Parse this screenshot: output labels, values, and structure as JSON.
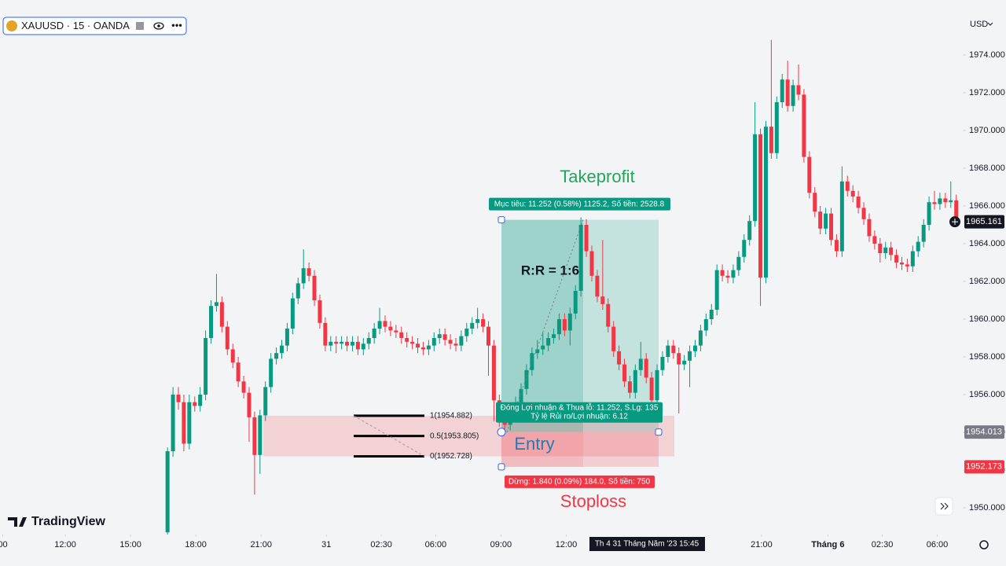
{
  "header": {
    "symbol": "XAUUSD · 15 · OANDA",
    "currency": "USD"
  },
  "brand": "TradingView",
  "chart_data": {
    "type": "candlestick",
    "colors": {
      "up": "#089981",
      "down": "#f23645"
    },
    "xlim": [
      -30.8,
      146.2
    ],
    "ylim": [
      1948.583,
      1976.917
    ],
    "grid": false,
    "yticks": [
      {
        "value": 1950,
        "label": "1950.000"
      },
      {
        "value": 1952,
        "label": "1952.000"
      },
      {
        "value": 1954,
        "label": "1954.000"
      },
      {
        "value": 1956,
        "label": "1956.000"
      },
      {
        "value": 1958,
        "label": "1958.000"
      },
      {
        "value": 1960,
        "label": "1960.000"
      },
      {
        "value": 1962,
        "label": "1962.000"
      },
      {
        "value": 1964,
        "label": "1964.000"
      },
      {
        "value": 1966,
        "label": "1966.000"
      },
      {
        "value": 1968,
        "label": "1968.000"
      },
      {
        "value": 1970,
        "label": "1970.000"
      },
      {
        "value": 1972,
        "label": "1972.000"
      },
      {
        "value": 1974,
        "label": "1974.000"
      }
    ],
    "xticks": [
      {
        "value": -30.3,
        "label": "00"
      },
      {
        "value": -18.8,
        "label": "12:00"
      },
      {
        "value": -6.8,
        "label": "15:00"
      },
      {
        "value": 5.2,
        "label": "18:00"
      },
      {
        "value": 17.2,
        "label": "21:00"
      },
      {
        "value": 29.2,
        "label": "31"
      },
      {
        "value": 39.3,
        "label": "02:30"
      },
      {
        "value": 49.3,
        "label": "06:00"
      },
      {
        "value": 61.3,
        "label": "09:00"
      },
      {
        "value": 73.3,
        "label": "12:00"
      },
      {
        "value": 109.2,
        "label": "21:00"
      },
      {
        "value": 121.4,
        "label": "Tháng 6"
      },
      {
        "value": 131.4,
        "label": "02:30"
      },
      {
        "value": 141.5,
        "label": "06:00"
      }
    ],
    "crosshair_time": "Th 4 31 Tháng Năm '23   15:45",
    "last_price": {
      "value": 1965.161,
      "label": "1965.161"
    },
    "candles": [
      [
        1948.7,
        1953.2,
        1947.9,
        1953.0
      ],
      [
        1953.0,
        1956.4,
        1952.7,
        1956.0
      ],
      [
        1956.0,
        1956.4,
        1955.2,
        1955.6
      ],
      [
        1955.6,
        1956.0,
        1953.0,
        1953.4
      ],
      [
        1953.4,
        1956.0,
        1953.1,
        1955.6
      ],
      [
        1955.6,
        1955.9,
        1955.1,
        1955.4
      ],
      [
        1955.4,
        1956.4,
        1955.1,
        1956.0
      ],
      [
        1956.0,
        1959.4,
        1955.7,
        1959.0
      ],
      [
        1959.0,
        1961.0,
        1958.7,
        1960.7
      ],
      [
        1960.7,
        1962.4,
        1960.4,
        1960.9
      ],
      [
        1960.9,
        1961.2,
        1959.3,
        1959.6
      ],
      [
        1959.6,
        1959.9,
        1958.1,
        1958.4
      ],
      [
        1958.4,
        1958.7,
        1957.4,
        1957.7
      ],
      [
        1957.7,
        1958.0,
        1956.4,
        1956.7
      ],
      [
        1956.7,
        1957.0,
        1955.8,
        1956.1
      ],
      [
        1956.1,
        1956.4,
        1953.5,
        1954.8
      ],
      [
        1954.8,
        1955.1,
        1950.7,
        1952.8
      ],
      [
        1952.8,
        1955.2,
        1951.8,
        1954.9
      ],
      [
        1954.9,
        1956.7,
        1954.6,
        1956.4
      ],
      [
        1956.4,
        1958.2,
        1956.1,
        1957.9
      ],
      [
        1957.9,
        1958.5,
        1957.6,
        1958.2
      ],
      [
        1958.2,
        1958.9,
        1957.9,
        1958.6
      ],
      [
        1958.6,
        1959.8,
        1958.3,
        1959.5
      ],
      [
        1959.5,
        1961.4,
        1959.2,
        1961.1
      ],
      [
        1961.1,
        1962.2,
        1960.8,
        1961.9
      ],
      [
        1961.9,
        1963.7,
        1961.6,
        1962.7
      ],
      [
        1962.7,
        1963.0,
        1962.0,
        1962.3
      ],
      [
        1962.3,
        1962.6,
        1960.7,
        1961.0
      ],
      [
        1961.0,
        1961.3,
        1959.5,
        1959.8
      ],
      [
        1959.8,
        1960.1,
        1958.3,
        1958.6
      ],
      [
        1958.6,
        1959.1,
        1958.3,
        1958.8
      ],
      [
        1958.8,
        1959.1,
        1958.2,
        1958.7
      ],
      [
        1958.7,
        1959.1,
        1958.4,
        1958.8
      ],
      [
        1958.8,
        1959.1,
        1958.3,
        1958.6
      ],
      [
        1958.6,
        1959.1,
        1958.3,
        1958.8
      ],
      [
        1958.8,
        1959.1,
        1958.1,
        1958.4
      ],
      [
        1958.4,
        1959.0,
        1958.1,
        1958.7
      ],
      [
        1958.7,
        1959.3,
        1958.4,
        1959.0
      ],
      [
        1959.0,
        1959.8,
        1958.7,
        1959.5
      ],
      [
        1959.5,
        1960.6,
        1959.2,
        1959.9
      ],
      [
        1959.9,
        1960.2,
        1959.3,
        1959.6
      ],
      [
        1959.6,
        1959.9,
        1959.1,
        1959.4
      ],
      [
        1959.4,
        1959.7,
        1959.0,
        1959.3
      ],
      [
        1959.3,
        1959.6,
        1958.7,
        1959.0
      ],
      [
        1959.0,
        1959.3,
        1958.5,
        1958.8
      ],
      [
        1958.8,
        1959.1,
        1958.4,
        1958.7
      ],
      [
        1958.7,
        1959.0,
        1958.2,
        1958.5
      ],
      [
        1958.5,
        1958.8,
        1958.1,
        1958.4
      ],
      [
        1958.4,
        1958.9,
        1958.1,
        1958.6
      ],
      [
        1958.6,
        1959.3,
        1958.3,
        1959.0
      ],
      [
        1959.0,
        1959.5,
        1958.7,
        1959.2
      ],
      [
        1959.2,
        1959.5,
        1958.6,
        1958.9
      ],
      [
        1958.9,
        1959.2,
        1958.4,
        1958.7
      ],
      [
        1958.7,
        1959.0,
        1958.3,
        1958.6
      ],
      [
        1958.6,
        1959.4,
        1958.3,
        1959.1
      ],
      [
        1959.1,
        1959.8,
        1958.8,
        1959.5
      ],
      [
        1959.5,
        1960.1,
        1959.2,
        1959.8
      ],
      [
        1959.8,
        1960.6,
        1959.5,
        1960.0
      ],
      [
        1960.0,
        1960.3,
        1959.3,
        1959.6
      ],
      [
        1959.6,
        1959.9,
        1957.0,
        1958.6
      ],
      [
        1958.6,
        1958.9,
        1954.6,
        1955.7
      ],
      [
        1955.7,
        1956.0,
        1954.3,
        1954.6
      ],
      [
        1954.6,
        1955.0,
        1954.1,
        1954.4
      ],
      [
        1954.4,
        1955.4,
        1954.1,
        1955.1
      ],
      [
        1955.1,
        1955.9,
        1954.8,
        1955.6
      ],
      [
        1955.6,
        1956.6,
        1955.3,
        1956.3
      ],
      [
        1956.3,
        1957.6,
        1956.0,
        1957.3
      ],
      [
        1957.3,
        1958.5,
        1957.0,
        1958.2
      ],
      [
        1958.2,
        1958.9,
        1957.9,
        1958.4
      ],
      [
        1958.4,
        1959.3,
        1958.1,
        1958.6
      ],
      [
        1958.6,
        1959.3,
        1958.3,
        1959.0
      ],
      [
        1959.0,
        1959.5,
        1958.7,
        1959.2
      ],
      [
        1959.2,
        1960.3,
        1958.9,
        1960.0
      ],
      [
        1960.0,
        1960.3,
        1959.1,
        1959.4
      ],
      [
        1959.4,
        1960.6,
        1958.6,
        1960.3
      ],
      [
        1960.3,
        1961.8,
        1960.0,
        1961.5
      ],
      [
        1961.5,
        1965.4,
        1961.2,
        1965.0
      ],
      [
        1965.0,
        1965.3,
        1963.3,
        1963.6
      ],
      [
        1963.6,
        1963.9,
        1962.0,
        1962.3
      ],
      [
        1962.3,
        1962.6,
        1960.9,
        1961.2
      ],
      [
        1961.2,
        1964.2,
        1960.5,
        1960.8
      ],
      [
        1960.8,
        1961.1,
        1959.3,
        1959.6
      ],
      [
        1959.6,
        1959.9,
        1958.0,
        1958.3
      ],
      [
        1958.3,
        1958.6,
        1957.3,
        1957.6
      ],
      [
        1957.6,
        1957.9,
        1956.4,
        1956.7
      ],
      [
        1956.7,
        1957.0,
        1955.8,
        1956.1
      ],
      [
        1956.1,
        1957.6,
        1955.8,
        1957.3
      ],
      [
        1957.3,
        1958.8,
        1957.0,
        1957.9
      ],
      [
        1957.9,
        1958.2,
        1956.6,
        1956.9
      ],
      [
        1956.9,
        1957.2,
        1955.4,
        1955.7
      ],
      [
        1955.7,
        1957.6,
        1955.4,
        1957.3
      ],
      [
        1957.3,
        1958.3,
        1957.0,
        1958.0
      ],
      [
        1958.0,
        1958.9,
        1957.7,
        1958.6
      ],
      [
        1958.6,
        1958.9,
        1957.9,
        1958.2
      ],
      [
        1958.2,
        1958.5,
        1955.0,
        1957.6
      ],
      [
        1957.6,
        1958.1,
        1957.3,
        1957.8
      ],
      [
        1957.8,
        1958.6,
        1956.4,
        1958.3
      ],
      [
        1958.3,
        1958.9,
        1958.0,
        1958.6
      ],
      [
        1958.6,
        1959.7,
        1958.3,
        1959.4
      ],
      [
        1959.4,
        1960.3,
        1959.1,
        1960.0
      ],
      [
        1960.0,
        1960.8,
        1959.7,
        1960.5
      ],
      [
        1960.5,
        1962.9,
        1960.2,
        1962.6
      ],
      [
        1962.6,
        1962.9,
        1962.0,
        1962.3
      ],
      [
        1962.3,
        1962.6,
        1961.9,
        1962.2
      ],
      [
        1962.2,
        1962.9,
        1961.9,
        1962.6
      ],
      [
        1962.6,
        1963.6,
        1962.3,
        1963.3
      ],
      [
        1963.3,
        1964.5,
        1963.0,
        1964.2
      ],
      [
        1964.2,
        1965.5,
        1963.9,
        1965.2
      ],
      [
        1965.2,
        1971.5,
        1964.9,
        1969.8
      ],
      [
        1969.8,
        1970.1,
        1960.7,
        1962.2
      ],
      [
        1962.2,
        1970.5,
        1961.9,
        1970.2
      ],
      [
        1970.2,
        1974.8,
        1968.5,
        1968.8
      ],
      [
        1968.8,
        1971.8,
        1968.5,
        1971.5
      ],
      [
        1971.5,
        1973.0,
        1971.2,
        1972.7
      ],
      [
        1972.7,
        1973.7,
        1971.0,
        1971.3
      ],
      [
        1971.3,
        1972.7,
        1971.0,
        1972.4
      ],
      [
        1972.4,
        1973.5,
        1971.6,
        1971.9
      ],
      [
        1971.9,
        1972.2,
        1968.3,
        1968.6
      ],
      [
        1968.6,
        1968.9,
        1966.4,
        1966.7
      ],
      [
        1966.7,
        1967.0,
        1965.4,
        1965.7
      ],
      [
        1965.7,
        1966.0,
        1964.5,
        1964.8
      ],
      [
        1964.8,
        1965.9,
        1964.5,
        1965.6
      ],
      [
        1965.6,
        1965.9,
        1963.9,
        1964.2
      ],
      [
        1964.2,
        1964.5,
        1963.3,
        1963.6
      ],
      [
        1963.6,
        1968.1,
        1963.3,
        1967.3
      ],
      [
        1967.3,
        1967.6,
        1966.5,
        1966.8
      ],
      [
        1966.8,
        1967.1,
        1966.2,
        1966.5
      ],
      [
        1966.5,
        1966.8,
        1965.6,
        1965.9
      ],
      [
        1965.9,
        1966.2,
        1965.0,
        1965.3
      ],
      [
        1965.3,
        1965.6,
        1964.1,
        1964.4
      ],
      [
        1964.4,
        1964.7,
        1963.7,
        1964.0
      ],
      [
        1964.0,
        1964.3,
        1963.0,
        1963.5
      ],
      [
        1963.5,
        1964.1,
        1963.2,
        1963.8
      ],
      [
        1963.8,
        1964.1,
        1963.1,
        1963.4
      ],
      [
        1963.4,
        1963.7,
        1962.7,
        1963.0
      ],
      [
        1963.0,
        1963.3,
        1962.6,
        1962.9
      ],
      [
        1962.9,
        1963.2,
        1962.5,
        1962.8
      ],
      [
        1962.8,
        1963.9,
        1962.5,
        1963.6
      ],
      [
        1963.6,
        1964.4,
        1963.3,
        1964.1
      ],
      [
        1964.1,
        1965.3,
        1963.8,
        1965.0
      ],
      [
        1965.0,
        1966.5,
        1964.7,
        1966.2
      ],
      [
        1966.2,
        1966.8,
        1965.8,
        1966.1
      ],
      [
        1966.1,
        1966.7,
        1965.8,
        1966.4
      ],
      [
        1966.4,
        1966.7,
        1965.9,
        1966.2
      ],
      [
        1966.2,
        1967.3,
        1965.9,
        1966.3
      ],
      [
        1966.3,
        1966.6,
        1964.9,
        1965.2
      ]
    ],
    "position": {
      "entry": {
        "value": 1954.013,
        "label": "1954.013"
      },
      "stop": {
        "value": 1952.173,
        "label": "1952.173"
      },
      "target_distance": 11.252,
      "target_label": "Mục tiêu: 11.252 (0.58%) 1125.2, Số tiền: 2528.8",
      "pnl_label": "Đóng Lợi nhuận & Thua lỗ: 11.252, S.Lg: 135",
      "ratio_label": "Tỷ lệ Rủi ro/Lợi nhuận: 6.12",
      "stop_label": "Dừng: 1.840 (0.09%) 184.0, Số tiền: 750"
    },
    "fib": {
      "levels": [
        {
          "value": 1954.882,
          "label": "1(1954.882)"
        },
        {
          "value": 1953.805,
          "label": "0.5(1953.805)"
        },
        {
          "value": 1952.728,
          "label": "0(1952.728)"
        }
      ]
    },
    "annotations": {
      "takeprofit": "Takeprofit",
      "entry": "Entry",
      "stoploss": "Stoploss",
      "rr": "R:R = 1:6"
    }
  }
}
